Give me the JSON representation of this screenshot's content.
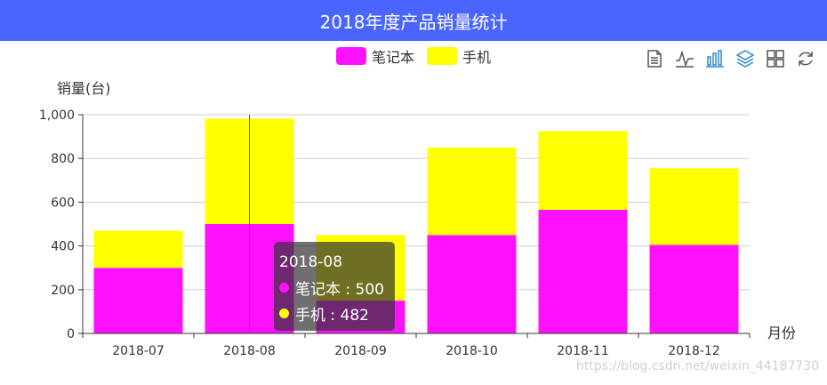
{
  "title": "2018年度产品销量统计",
  "legend": [
    {
      "label": "笔记本",
      "color": "#ff10ff"
    },
    {
      "label": "手机",
      "color": "#ffff00"
    }
  ],
  "toolbox": {
    "icons": [
      "data-view-icon",
      "line-chart-icon",
      "bar-chart-icon",
      "stack-icon",
      "tiled-icon",
      "restore-icon"
    ],
    "active": "bar-chart-icon",
    "color": "#555555",
    "active_color": "#2f89cf"
  },
  "tooltip": {
    "title": "2018-08",
    "rows": [
      {
        "text": "笔记本 : 500",
        "color": "#ff10ff"
      },
      {
        "text": "手机 : 482",
        "color": "#ffff00"
      }
    ]
  },
  "watermark": "https://blog.csdn.net/weixin_44187730",
  "chart_data": {
    "type": "bar",
    "stacked": true,
    "categories": [
      "2018-07",
      "2018-08",
      "2018-09",
      "2018-10",
      "2018-11",
      "2018-12"
    ],
    "series": [
      {
        "name": "笔记本",
        "color": "#ff10ff",
        "values": [
          300,
          500,
          150,
          450,
          565,
          405
        ]
      },
      {
        "name": "手机",
        "color": "#ffff00",
        "values": [
          170,
          482,
          300,
          400,
          360,
          350
        ]
      }
    ],
    "xlabel": "月份",
    "ylabel": "销量(台)",
    "ylim": [
      0,
      1000
    ],
    "yticks": [
      0,
      200,
      400,
      600,
      800,
      1000
    ],
    "ytick_labels": [
      "0",
      "200",
      "400",
      "600",
      "800",
      "1,000"
    ],
    "grid": true,
    "highlighted_category": "2018-08"
  }
}
